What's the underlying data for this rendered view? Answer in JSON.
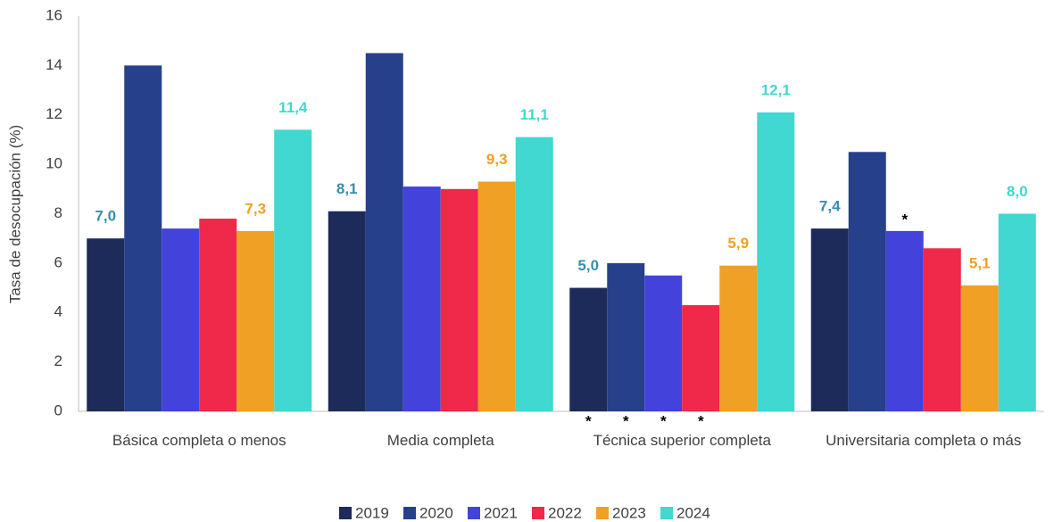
{
  "chart_data": {
    "type": "bar",
    "y_label": "Tasa de desocupación (%)",
    "categories": [
      "Básica completa o menos",
      "Media completa",
      "Técnica superior completa",
      "Universitaria completa o más"
    ],
    "ylim": [
      0,
      16
    ],
    "yticks": [
      0,
      2,
      4,
      6,
      8,
      10,
      12,
      14,
      16
    ],
    "grid": false,
    "legend": "bottom",
    "series": [
      {
        "name": "2019",
        "color": "#1c2b5a",
        "label_color": "#3a8db0",
        "values": [
          7.0,
          8.1,
          5.0,
          7.4
        ],
        "value_labels": [
          "7,0",
          "8,1",
          "5,0",
          "7,4"
        ],
        "notes": [
          null,
          null,
          "*",
          null
        ]
      },
      {
        "name": "2020",
        "color": "#27408b",
        "values": [
          14.0,
          14.5,
          6.0,
          10.5
        ],
        "notes": [
          null,
          null,
          "*",
          null
        ]
      },
      {
        "name": "2021",
        "color": "#4343dc",
        "values": [
          7.4,
          9.1,
          5.5,
          7.3
        ],
        "notes": [
          null,
          null,
          "*",
          "*"
        ]
      },
      {
        "name": "2022",
        "color": "#f0284a",
        "values": [
          7.8,
          9.0,
          4.3,
          6.6
        ],
        "notes": [
          null,
          null,
          "*",
          null
        ]
      },
      {
        "name": "2023",
        "color": "#f0a024",
        "label_color": "#f0a024",
        "values": [
          7.3,
          9.3,
          5.9,
          5.1
        ],
        "value_labels": [
          "7,3",
          "9,3",
          "5,9",
          "5,1"
        ]
      },
      {
        "name": "2024",
        "color": "#40d8d0",
        "label_color": "#40d8d0",
        "values": [
          11.4,
          11.1,
          12.1,
          8.0
        ],
        "value_labels": [
          "11,4",
          "11,1",
          "12,1",
          "8,0"
        ]
      }
    ]
  }
}
